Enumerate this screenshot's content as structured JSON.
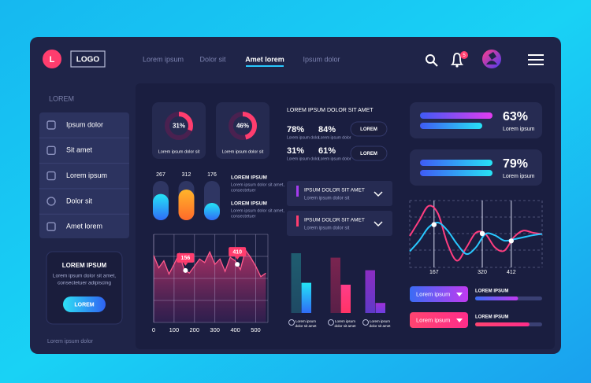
{
  "header": {
    "logo_letter": "L",
    "logo": "LOGO",
    "nav": [
      "Lorem ipsum",
      "Dolor sit",
      "Amet lorem",
      "Ipsum dolor"
    ],
    "active_nav": 2,
    "notifications": 5
  },
  "sidebar": {
    "title": "LOREM",
    "menu": [
      "Ipsum dolor",
      "Sit amet",
      "Lorem ipsum",
      "Dolor sit",
      "Amet lorem"
    ],
    "card": {
      "title": "LOREM IPSUM",
      "text": [
        "Lorem ipsum dolor sit amet,",
        "consectetuer adipiscing"
      ],
      "button": "LOREM"
    },
    "footer": "Lorem ipsum dolor"
  },
  "donuts": {
    "values": [
      31,
      46
    ],
    "value_labels": [
      "31%",
      "46%"
    ],
    "captions": [
      "Lorem ipsum dolor sit",
      "Lorem ipsum dolor sit"
    ]
  },
  "pills": {
    "values": [
      267,
      312,
      176
    ],
    "ylim": [
      0,
      400
    ]
  },
  "notes": [
    {
      "title": "LOREM IPSUM",
      "text": [
        "Lorem ipsum dolor sit amet,",
        "consectetuer"
      ]
    },
    {
      "title": "LOREM IPSUM",
      "text": [
        "Lorem ipsum dolor sit amet,",
        "consectetuer"
      ]
    }
  ],
  "stats": {
    "title": "LOREM IPSUM DOLOR SIT AMET",
    "values": [
      78,
      84,
      31,
      61
    ],
    "value_labels": [
      "78%",
      "84%",
      "31%",
      "61%"
    ],
    "captions": [
      "Lorem ipsum dolor",
      "Lorem ipsum dolor",
      "Lorem ipsum dolor",
      "Lorem ipsum dolor"
    ],
    "buttons": [
      "LOREM",
      "LOREM"
    ]
  },
  "dropdowns": [
    {
      "title": "IPSUM DOLOR SIT AMET",
      "text": "Lorem ipsum dolor sit"
    },
    {
      "title": "IPSUM DOLOR SIT AMET",
      "text": "Lorem ipsum dolor sit"
    }
  ],
  "line_chart": {
    "x": [
      0,
      25,
      50,
      75,
      100,
      125,
      150,
      175,
      200,
      225,
      250,
      275,
      300,
      325,
      350,
      375,
      400,
      425,
      450,
      475,
      500,
      525,
      550
    ],
    "values": [
      76,
      62,
      70,
      55,
      66,
      78,
      60,
      56,
      64,
      72,
      68,
      80,
      66,
      72,
      58,
      74,
      70,
      60,
      82,
      74,
      64,
      52,
      56
    ],
    "xlim": [
      0,
      560
    ],
    "ylim": [
      0,
      100
    ],
    "xticks": [
      0,
      100,
      200,
      300,
      400,
      500
    ],
    "annotations": [
      156,
      410
    ]
  },
  "bar_chart": {
    "categories": [
      [
        "Lorem ipsum",
        "dolor sit amet"
      ],
      [
        "Lorem ipsum",
        "dolor sit amet"
      ],
      [
        "Lorem ipsum",
        "dolor sit amet"
      ]
    ],
    "series": [
      {
        "values": [
          95,
          88,
          68
        ]
      },
      {
        "values": [
          48,
          45,
          16
        ]
      }
    ],
    "ylim": [
      0,
      100
    ]
  },
  "progress_cards": [
    {
      "value": 63,
      "value_label": "63%",
      "caption": "Lorem ipsum",
      "bars": [
        92,
        79
      ]
    },
    {
      "value": 79,
      "value_label": "79%",
      "caption": "Lorem ipsum",
      "bars": [
        92,
        92
      ]
    }
  ],
  "wave_chart": {
    "x": [
      90,
      120,
      150,
      180,
      210,
      240,
      270,
      300,
      330,
      360,
      390,
      420,
      450,
      480,
      510
    ],
    "xlim": [
      90,
      510
    ],
    "ylim": [
      0,
      100
    ],
    "xticks": [
      167,
      320,
      412
    ],
    "series": [
      {
        "color": "#ff3d7f",
        "values": [
          47,
          70,
          92,
          80,
          35,
          10,
          30,
          52,
          50,
          30,
          25,
          45,
          55,
          52,
          50
        ],
        "markers": [
          320,
          412
        ]
      },
      {
        "color": "#29c8ff",
        "values": [
          24,
          40,
          60,
          67,
          55,
          35,
          20,
          30,
          50,
          48,
          40,
          42,
          45,
          48,
          50
        ],
        "markers": [
          167
        ]
      }
    ]
  },
  "selects": [
    {
      "button": "Lorem ipsum",
      "title": "LOREM IPSUM",
      "value": 64
    },
    {
      "button": "Lorem ipsum",
      "title": "LOREM IPSUM",
      "value": 81
    }
  ]
}
